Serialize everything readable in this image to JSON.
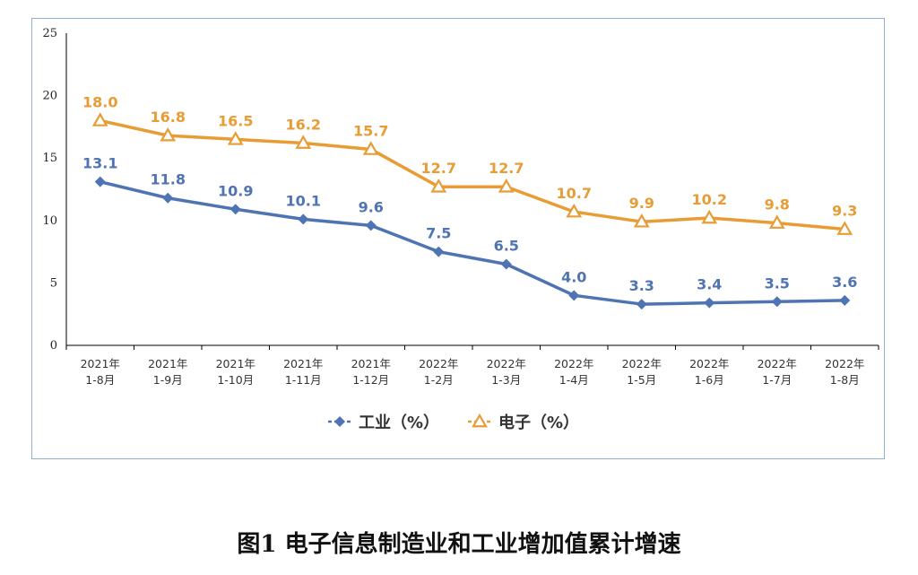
{
  "chart_data": {
    "type": "line",
    "title": "图1 电子信息制造业和工业增加值累计增速",
    "categories": [
      [
        "2021年",
        "1-8月"
      ],
      [
        "2021年",
        "1-9月"
      ],
      [
        "2021年",
        "1-10月"
      ],
      [
        "2021年",
        "1-11月"
      ],
      [
        "2021年",
        "1-12月"
      ],
      [
        "2022年",
        "1-2月"
      ],
      [
        "2022年",
        "1-3月"
      ],
      [
        "2022年",
        "1-4月"
      ],
      [
        "2022年",
        "1-5月"
      ],
      [
        "2022年",
        "1-6月"
      ],
      [
        "2022年",
        "1-7月"
      ],
      [
        "2022年",
        "1-8月"
      ]
    ],
    "series": [
      {
        "name": "工业（%）",
        "color": "#4f74b3",
        "marker": "diamond",
        "values": [
          13.1,
          11.8,
          10.9,
          10.1,
          9.6,
          7.5,
          6.5,
          4.0,
          3.3,
          3.4,
          3.5,
          3.6
        ],
        "labels": [
          "13.1",
          "11.8",
          "10.9",
          "10.1",
          "9.6",
          "7.5",
          "6.5",
          "4.0",
          "3.3",
          "3.4",
          "3.5",
          "3.6"
        ]
      },
      {
        "name": "电子（%）",
        "color": "#e89c35",
        "marker": "triangle",
        "values": [
          18.0,
          16.8,
          16.5,
          16.2,
          15.7,
          12.7,
          12.7,
          10.7,
          9.9,
          10.2,
          9.8,
          9.3
        ],
        "labels": [
          "18.0",
          "16.8",
          "16.5",
          "16.2",
          "15.7",
          "12.7",
          "12.7",
          "10.7",
          "9.9",
          "10.2",
          "9.8",
          "9.3"
        ]
      }
    ],
    "ylim": [
      0,
      25
    ],
    "yticks": [
      "0",
      "5",
      "10",
      "15",
      "20",
      "25"
    ],
    "grid": false,
    "legend": "bottom"
  }
}
